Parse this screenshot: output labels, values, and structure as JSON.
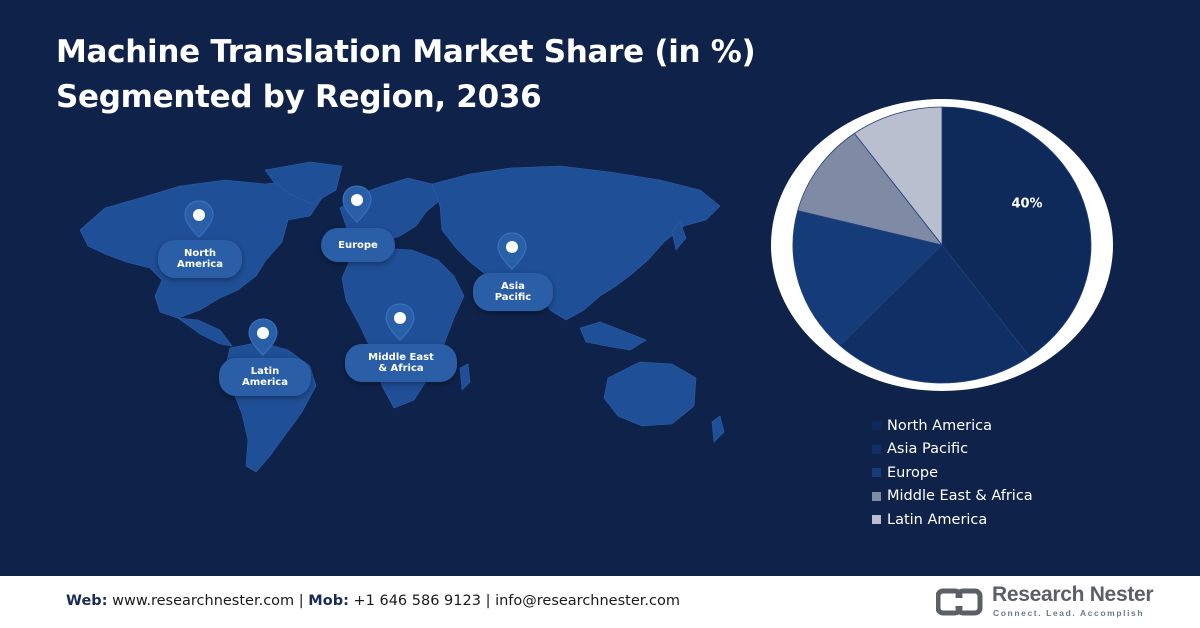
{
  "title": {
    "line1": "Machine Translation Market Share (in %)",
    "line2": "Segmented by Region, 2036"
  },
  "map_labels": [
    {
      "id": "north-america",
      "text": [
        "North",
        "America"
      ]
    },
    {
      "id": "europe",
      "text": [
        "Europe"
      ]
    },
    {
      "id": "asia-pacific",
      "text": [
        "Asia",
        "Pacific"
      ]
    },
    {
      "id": "latin-america",
      "text": [
        "Latin",
        "America"
      ]
    },
    {
      "id": "middle-east-africa",
      "text": [
        "Middle East",
        "& Africa"
      ]
    }
  ],
  "chart_data": {
    "type": "pie",
    "title": "Machine Translation Market Share (in %) Segmented by Region, 2036",
    "slices": [
      {
        "label": "North America",
        "value": 40,
        "color": "#0d2a5a",
        "data_label": "40%"
      },
      {
        "label": "Asia Pacific",
        "value": 22,
        "color": "#0f2f65",
        "data_label": ""
      },
      {
        "label": "Europe",
        "value": 17,
        "color": "#153b78",
        "data_label": ""
      },
      {
        "label": "Middle East & Africa",
        "value": 11,
        "color": "#7f8aa5",
        "data_label": ""
      },
      {
        "label": "Latin America",
        "value": 10,
        "color": "#b9bfce",
        "data_label": ""
      }
    ],
    "legend_position": "bottom-right"
  },
  "legend": {
    "items": [
      {
        "label": "North America",
        "color": "#0d2a5a"
      },
      {
        "label": "Asia Pacific",
        "color": "#0f2f65"
      },
      {
        "label": "Europe",
        "color": "#153b78"
      },
      {
        "label": "Middle East & Africa",
        "color": "#7f8aa5"
      },
      {
        "label": "Latin America",
        "color": "#b9bfce"
      }
    ]
  },
  "footer": {
    "web_label": "Web:",
    "web_value": "www.researchnester.com",
    "sep1": "|",
    "mob_label": "Mob:",
    "mob_value": "+1 646 586 9123",
    "sep2": "|",
    "email": "info@researchnester.com"
  },
  "logo": {
    "name": "Research Nester",
    "tagline": "Connect. Lead. Accomplish",
    "icon": "research-nester-logo-icon"
  },
  "colors": {
    "background": "#0f2249",
    "map": "#1f4f97",
    "label": "#2a5fa8",
    "pie_ring": "#ffffff"
  }
}
